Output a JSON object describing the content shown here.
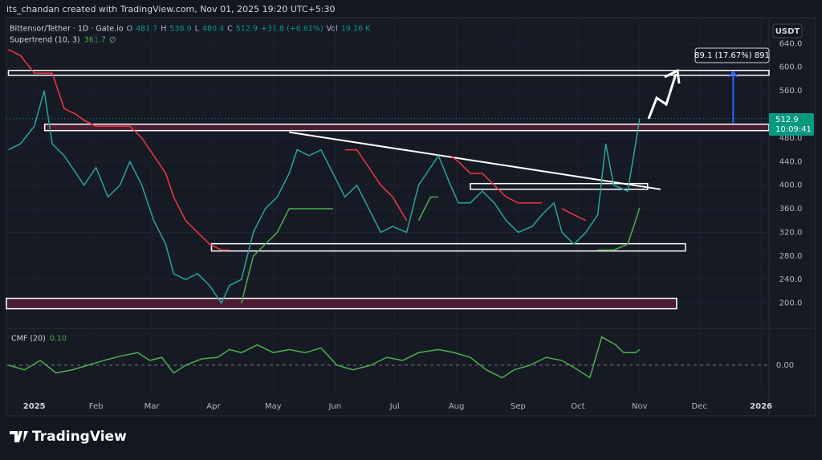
{
  "header": "its_chandan created with TradingView.com, Nov 01, 2025 19:20 UTC+5:30",
  "brand": "TradingView",
  "currency": "USDT",
  "legend": {
    "symbol": "Bittensor/Tether · 1D · Gate.io",
    "o_label": "O",
    "o": "481.7",
    "h_label": "H",
    "h": "538.9",
    "l_label": "L",
    "l": "480.4",
    "c_label": "C",
    "c": "512.9",
    "change": "+31.8 (+6.61%)",
    "vol_label": "Vol",
    "vol": "19.16 K",
    "supertrend_value": "361.7",
    "supertrend_extra": "∅"
  },
  "price_label": {
    "price": "512.9",
    "countdown": "10:09:41"
  },
  "measure_label": "89.1 (17.67%) 891",
  "chart_data": [
    {
      "type": "line",
      "x": [
        -13,
        -7,
        0,
        5,
        9,
        15,
        21,
        25,
        31,
        37,
        43,
        48,
        54,
        60,
        66,
        70,
        76,
        82,
        88,
        94,
        98,
        104,
        110,
        116,
        122,
        128,
        132,
        138,
        144,
        150,
        156,
        162,
        168,
        174,
        180,
        187,
        193,
        199,
        203,
        209,
        213,
        219,
        225,
        231,
        237,
        243,
        250,
        255,
        261,
        265,
        271,
        277,
        283,
        287,
        291,
        298,
        302,
        304
      ],
      "series": [
        {
          "color": "#26a69a",
          "values": [
            460,
            470,
            500,
            560,
            470,
            450,
            420,
            400,
            430,
            380,
            400,
            440,
            400,
            340,
            300,
            250,
            240,
            250,
            230,
            200,
            230,
            240,
            320,
            360,
            380,
            420,
            460,
            450,
            460,
            420,
            380,
            400,
            360,
            320,
            330,
            320,
            400,
            430,
            450,
            400,
            370,
            370,
            390,
            370,
            340,
            320,
            330,
            350,
            370,
            320,
            300,
            320,
            350,
            470,
            400,
            390,
            470,
            512.9
          ]
        },
        {
          "name": "Supertrend (10, 3)",
          "colors": [
            "#f23645",
            "#4caf50"
          ],
          "values": [
            630,
            620,
            590,
            590,
            590,
            530,
            520,
            510,
            500,
            500,
            500,
            500,
            480,
            450,
            420,
            380,
            340,
            320,
            300,
            290,
            290,
            200,
            280,
            300,
            320,
            360,
            360,
            360,
            360,
            360,
            460,
            460,
            430,
            400,
            380,
            340,
            340,
            380,
            380,
            450,
            440,
            420,
            420,
            400,
            380,
            370,
            370,
            370,
            370,
            360,
            350,
            340,
            290,
            290,
            290,
            300,
            340,
            361.7
          ]
        }
      ],
      "xlim": [
        -14,
        369
      ],
      "xticks": [
        {
          "value": 0,
          "label": "2025"
        },
        {
          "value": 31,
          "label": "Feb"
        },
        {
          "value": 59,
          "label": "Mar"
        },
        {
          "value": 90,
          "label": "Apr"
        },
        {
          "value": 120,
          "label": "May"
        },
        {
          "value": 151,
          "label": "Jun"
        },
        {
          "value": 181,
          "label": "Jul"
        },
        {
          "value": 212,
          "label": "Aug"
        },
        {
          "value": 243,
          "label": "Sep"
        },
        {
          "value": 273,
          "label": "Oct"
        },
        {
          "value": 304,
          "label": "Nov"
        },
        {
          "value": 334,
          "label": "Dec"
        },
        {
          "value": 365,
          "label": "2026"
        }
      ],
      "ylim": [
        160,
        684
      ],
      "yticks": [
        {
          "value": 200,
          "label": "200.0"
        },
        {
          "value": 240,
          "label": "240.0"
        },
        {
          "value": 280,
          "label": "280.0"
        },
        {
          "value": 320,
          "label": "320.0"
        },
        {
          "value": 360,
          "label": "360.0"
        },
        {
          "value": 400,
          "label": "400.0"
        },
        {
          "value": 440,
          "label": "440.0"
        },
        {
          "value": 480,
          "label": "480.0"
        },
        {
          "value": 560,
          "label": "560.0"
        },
        {
          "value": 600,
          "label": "600.0"
        },
        {
          "value": 640,
          "label": "640.0"
        }
      ],
      "zones": [
        {
          "x": [
            -13,
            369
          ],
          "y": [
            586.4,
            594.6
          ],
          "fill": "none"
        },
        {
          "x": [
            5.2,
            369
          ],
          "y": [
            492.5,
            503.4
          ],
          "fill": "#4a1d33"
        },
        {
          "x": [
            219,
            308
          ],
          "y": [
            393.1,
            402.7
          ],
          "fill": "none"
        },
        {
          "x": [
            89,
            327
          ],
          "y": [
            288.4,
            300.7
          ],
          "fill": "none"
        },
        {
          "x": [
            -14,
            322.6
          ],
          "y": [
            190.5,
            208.2
          ],
          "fill": "#4a1d33"
        }
      ],
      "trendline": {
        "x": [
          128,
          314.5
        ],
        "y": [
          489.8,
          393
        ]
      },
      "measure": {
        "x": 351,
        "y": [
          505,
          592
        ]
      }
    },
    {
      "type": "line",
      "x": [
        -13,
        -5,
        3,
        11,
        19,
        27,
        35,
        44,
        52,
        58,
        64,
        70,
        76,
        84,
        92,
        98,
        104,
        112,
        120,
        128,
        136,
        144,
        152,
        160,
        169,
        177,
        185,
        193,
        203,
        211,
        219,
        227,
        235,
        241,
        249,
        257,
        265,
        273,
        279,
        285,
        292,
        296,
        302,
        304
      ],
      "series": [
        {
          "name": "CMF (20)",
          "color": "#4caf50",
          "value_label": "0.10",
          "values": [
            0,
            -0.03,
            0.03,
            -0.05,
            -0.03,
            0,
            0.03,
            0.06,
            0.08,
            0.03,
            0.05,
            -0.05,
            0,
            0.04,
            0.05,
            0.1,
            0.08,
            0.13,
            0.08,
            0.1,
            0.08,
            0.11,
            0,
            -0.03,
            0,
            0.05,
            0.03,
            0.08,
            0.1,
            0.08,
            0.05,
            -0.03,
            -0.08,
            -0.03,
            0,
            0.05,
            0.03,
            -0.03,
            -0.08,
            0.18,
            0.13,
            0.08,
            0.08,
            0.1
          ]
        }
      ],
      "xlim": [
        -14,
        369
      ],
      "ylim": [
        -0.17,
        0.22
      ],
      "yticks": [
        {
          "value": 0,
          "label": "0.00"
        }
      ]
    }
  ]
}
